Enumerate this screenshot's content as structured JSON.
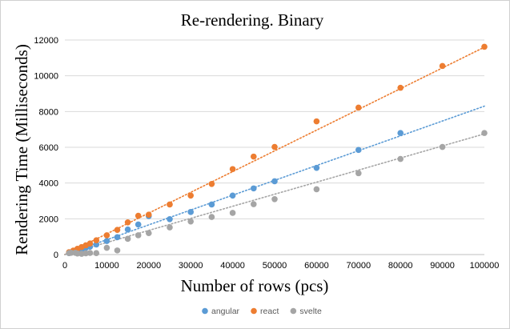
{
  "chart_data": {
    "type": "scatter",
    "title": "Re-rendering. Binary",
    "xlabel": "Number of rows (pcs)",
    "ylabel": "Rendering Time (Milliseconds)",
    "xlim": [
      0,
      100000
    ],
    "ylim": [
      0,
      12000
    ],
    "x_ticks": [
      0,
      10000,
      20000,
      30000,
      40000,
      50000,
      60000,
      70000,
      80000,
      90000,
      100000
    ],
    "y_ticks": [
      0,
      2000,
      4000,
      6000,
      8000,
      10000,
      12000
    ],
    "grid": "horizontal",
    "legend_position": "bottom",
    "trendlines": "linear, dotted",
    "series": [
      {
        "name": "angular",
        "color": "#5b9bd5",
        "points": [
          [
            1000,
            80
          ],
          [
            2000,
            150
          ],
          [
            3000,
            220
          ],
          [
            4000,
            290
          ],
          [
            5000,
            380
          ],
          [
            6000,
            440
          ],
          [
            7500,
            560
          ],
          [
            10000,
            760
          ],
          [
            12500,
            970
          ],
          [
            15000,
            1400
          ],
          [
            17500,
            1680
          ],
          [
            20000,
            2150
          ],
          [
            25000,
            1980
          ],
          [
            30000,
            2380
          ],
          [
            35000,
            2800
          ],
          [
            40000,
            3300
          ],
          [
            45000,
            3700
          ],
          [
            50000,
            4100
          ],
          [
            60000,
            4850
          ],
          [
            70000,
            5850
          ],
          [
            80000,
            6800
          ]
        ],
        "trend": [
          0,
          8300
        ]
      },
      {
        "name": "react",
        "color": "#ed7d31",
        "points": [
          [
            1000,
            130
          ],
          [
            2000,
            220
          ],
          [
            3000,
            320
          ],
          [
            4000,
            420
          ],
          [
            5000,
            520
          ],
          [
            6000,
            620
          ],
          [
            7500,
            800
          ],
          [
            10000,
            1080
          ],
          [
            12500,
            1380
          ],
          [
            15000,
            1800
          ],
          [
            17500,
            2170
          ],
          [
            20000,
            2230
          ],
          [
            25000,
            2800
          ],
          [
            30000,
            3300
          ],
          [
            35000,
            3950
          ],
          [
            40000,
            4780
          ],
          [
            45000,
            5480
          ],
          [
            50000,
            6020
          ],
          [
            60000,
            7450
          ],
          [
            70000,
            8220
          ],
          [
            80000,
            9330
          ],
          [
            90000,
            10550
          ],
          [
            100000,
            11620
          ]
        ],
        "trend": [
          0,
          11600
        ]
      },
      {
        "name": "svelte",
        "color": "#a5a5a5",
        "points": [
          [
            1000,
            80
          ],
          [
            1500,
            100
          ],
          [
            2500,
            100
          ],
          [
            3000,
            60
          ],
          [
            4000,
            40
          ],
          [
            5000,
            70
          ],
          [
            6000,
            90
          ],
          [
            7500,
            80
          ],
          [
            10000,
            380
          ],
          [
            12500,
            230
          ],
          [
            15000,
            880
          ],
          [
            17500,
            1080
          ],
          [
            20000,
            1200
          ],
          [
            25000,
            1520
          ],
          [
            30000,
            1850
          ],
          [
            35000,
            2100
          ],
          [
            40000,
            2330
          ],
          [
            45000,
            2820
          ],
          [
            50000,
            3100
          ],
          [
            60000,
            3650
          ],
          [
            70000,
            4550
          ],
          [
            80000,
            5350
          ],
          [
            90000,
            6020
          ],
          [
            100000,
            6800
          ]
        ],
        "trend": [
          0,
          6750
        ]
      }
    ]
  }
}
